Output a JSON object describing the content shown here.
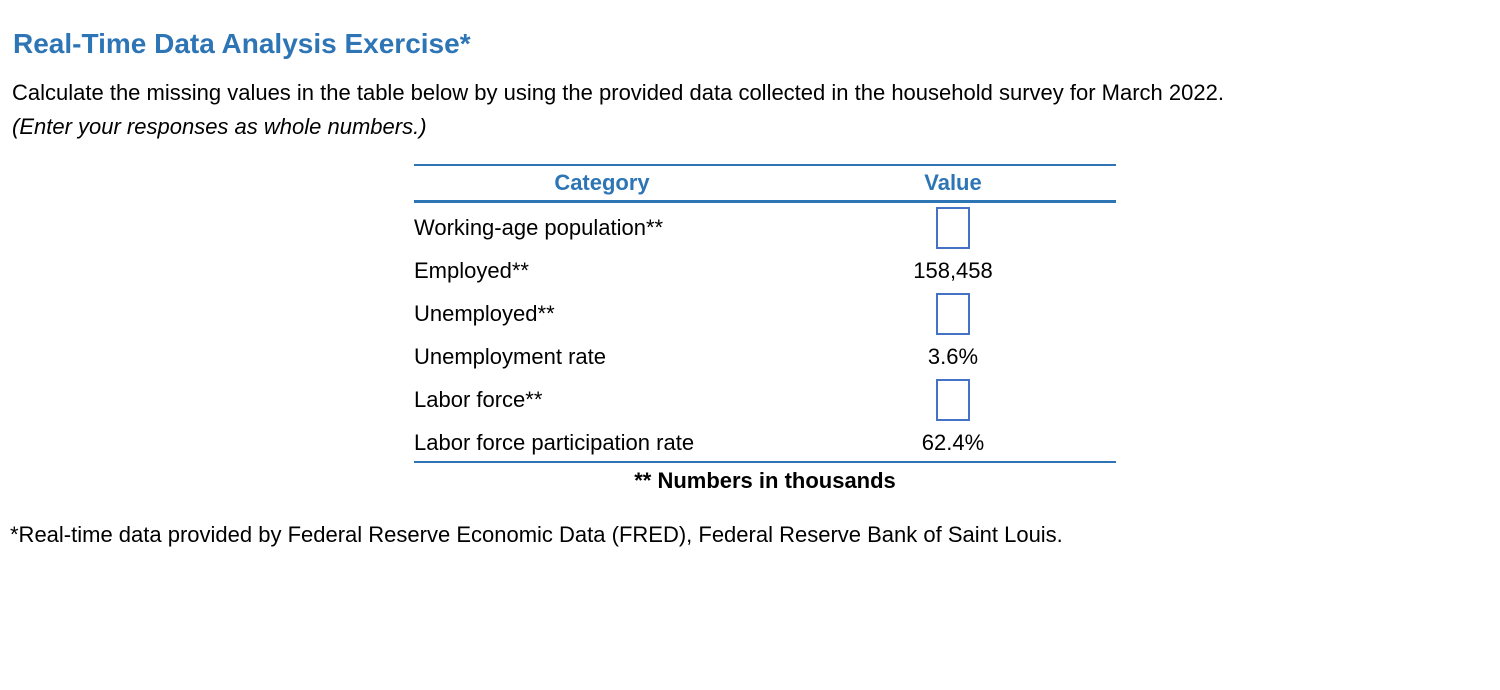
{
  "page": {
    "title": "Real-Time Data Analysis Exercise*",
    "instructions_line1": "Calculate the missing values in the table below by using the provided data collected in the household survey for March 2022.",
    "instructions_line2": "(Enter your responses as whole numbers.)",
    "footnote": "*Real-time data provided by Federal Reserve Economic Data (FRED), Federal Reserve Bank of Saint Louis."
  },
  "table": {
    "headers": [
      "Category",
      "Value"
    ],
    "caption": "** Numbers in thousands",
    "rows": [
      {
        "category": "Working-age population**",
        "value": "",
        "input": true
      },
      {
        "category": "Employed**",
        "value": "158,458",
        "input": false
      },
      {
        "category": "Unemployed**",
        "value": "",
        "input": true
      },
      {
        "category": "Unemployment rate",
        "value": "3.6%",
        "input": false
      },
      {
        "category": "Labor force**",
        "value": "",
        "input": true
      },
      {
        "category": "Labor force participation rate",
        "value": "62.4%",
        "input": false
      }
    ]
  },
  "colors": {
    "accent_blue": "#2E75B6",
    "input_border_blue": "#4472C4"
  }
}
